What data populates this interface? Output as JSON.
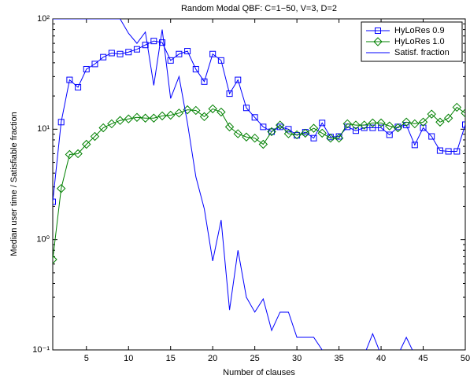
{
  "chart_data": {
    "type": "line",
    "title": "Random Modal QBF: C=1−50, V=3, D=2",
    "xlabel": "Number of clauses",
    "ylabel": "Median user time / Satisfiable fraction",
    "x": [
      1,
      2,
      3,
      4,
      5,
      6,
      7,
      8,
      9,
      10,
      11,
      12,
      13,
      14,
      15,
      16,
      17,
      18,
      19,
      20,
      21,
      22,
      23,
      24,
      25,
      26,
      27,
      28,
      29,
      30,
      31,
      32,
      33,
      34,
      35,
      36,
      37,
      38,
      39,
      40,
      41,
      42,
      43,
      44,
      45,
      46,
      47,
      48,
      49,
      50
    ],
    "xlim": [
      1,
      50
    ],
    "xticks": [
      5,
      10,
      15,
      20,
      25,
      30,
      35,
      40,
      45,
      50
    ],
    "ylim": [
      0.1,
      100
    ],
    "yscale": "log",
    "yticks": [
      {
        "value": 0.1,
        "label": "10⁻¹"
      },
      {
        "value": 1,
        "label": "10⁰"
      },
      {
        "value": 10,
        "label": "10¹"
      },
      {
        "value": 100,
        "label": "10²"
      }
    ],
    "legend": "upper right",
    "series": [
      {
        "name": "HyLoRes 0.9",
        "color": "#0000ff",
        "marker": "square",
        "values": [
          2.2,
          11.6,
          28,
          24,
          35,
          39,
          45,
          49,
          48,
          50,
          53,
          58,
          63,
          61,
          42,
          48,
          51,
          35,
          27,
          48,
          42,
          21,
          28,
          15.6,
          12.8,
          10.5,
          9.5,
          10.5,
          10,
          8.8,
          9.4,
          8.3,
          11.4,
          8.5,
          8.6,
          10.5,
          9.7,
          10.3,
          10.3,
          10.3,
          8.9,
          10.5,
          10.9,
          7.2,
          10.3,
          8.6,
          6.4,
          6.3,
          6.3,
          11
        ]
      },
      {
        "name": "HyLoRes 1.0",
        "color": "#008000",
        "marker": "diamond",
        "values": [
          0.66,
          2.9,
          5.9,
          6,
          7.3,
          8.6,
          10.3,
          11.2,
          12,
          12.4,
          12.8,
          12.6,
          12.6,
          13.2,
          13.4,
          14,
          15,
          14.8,
          13,
          15.3,
          14.3,
          10.5,
          9.1,
          8.5,
          8.3,
          7.3,
          9.5,
          10.9,
          9.1,
          8.9,
          9.2,
          10.2,
          9.2,
          8.3,
          8.3,
          11.2,
          10.9,
          10.9,
          11.4,
          11.4,
          10.7,
          10.3,
          11.6,
          11.2,
          11.6,
          13.7,
          11.6,
          12.6,
          15.8,
          14
        ]
      },
      {
        "name": "Satisf. fraction",
        "color": "#0000ff",
        "marker": "none",
        "values": [
          100,
          100,
          100,
          100,
          100,
          100,
          100,
          100,
          100,
          74,
          60,
          76,
          25,
          80,
          19,
          30,
          11.4,
          3.7,
          1.9,
          0.64,
          1.5,
          0.23,
          0.8,
          0.3,
          0.22,
          0.29,
          0.15,
          0.22,
          0.22,
          0.13,
          0.13,
          0.13,
          0.1,
          0.09,
          0.09,
          0.09,
          0.09,
          0.09,
          0.14,
          0.09,
          0.09,
          0.09,
          0.13,
          0.09,
          0.09,
          0.09,
          0.09,
          0.09,
          0.09,
          0.09
        ]
      }
    ]
  }
}
